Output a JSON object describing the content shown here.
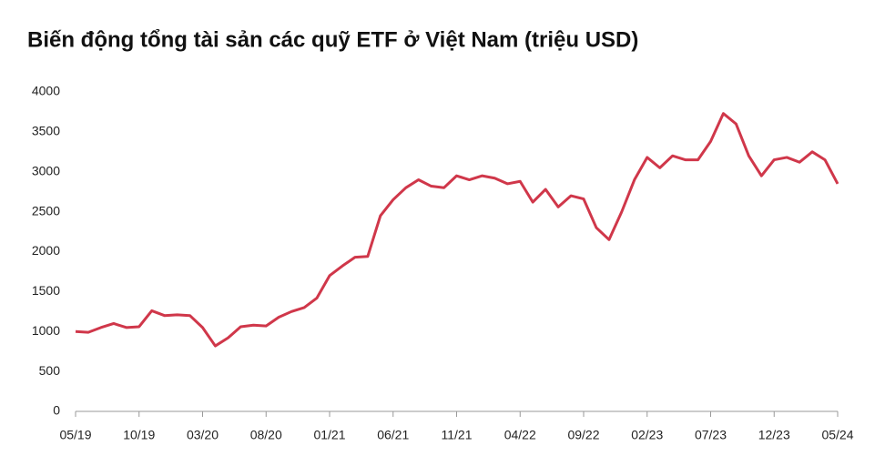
{
  "chart_data": {
    "type": "line",
    "title": "Biến động tổng tài sản các quỹ ETF ở Việt Nam (triệu USD)",
    "categories": [
      "05/19",
      null,
      null,
      null,
      null,
      "10/19",
      null,
      null,
      null,
      null,
      "03/20",
      null,
      null,
      null,
      null,
      "08/20",
      null,
      null,
      null,
      null,
      "01/21",
      null,
      null,
      null,
      null,
      "06/21",
      null,
      null,
      null,
      null,
      "11/21",
      null,
      null,
      null,
      null,
      "04/22",
      null,
      null,
      null,
      null,
      "09/22",
      null,
      null,
      null,
      null,
      "02/23",
      null,
      null,
      null,
      null,
      "07/23",
      null,
      null,
      null,
      null,
      "12/23",
      null,
      null,
      null,
      null,
      "05/24"
    ],
    "series": [
      {
        "name": "ETF",
        "color": "#d0374a",
        "values": [
          1000,
          990,
          1050,
          1100,
          1050,
          1060,
          1260,
          1200,
          1210,
          1200,
          1050,
          820,
          920,
          1060,
          1080,
          1070,
          1180,
          1250,
          1300,
          1420,
          1700,
          1820,
          1930,
          1940,
          2450,
          2650,
          2800,
          2900,
          2820,
          2800,
          2950,
          2900,
          2950,
          2920,
          2850,
          2880,
          2620,
          2780,
          2560,
          2700,
          2660,
          2300,
          2150,
          2500,
          2900,
          3180,
          3050,
          3200,
          3150,
          3150,
          3380,
          3730,
          3600,
          3200,
          2950,
          3150,
          3180,
          3120,
          3250,
          3150,
          2850
        ]
      }
    ],
    "ylim": [
      0,
      4000
    ],
    "yticks": [
      0,
      500,
      1000,
      1500,
      2000,
      2500,
      3000,
      3500,
      4000
    ]
  }
}
